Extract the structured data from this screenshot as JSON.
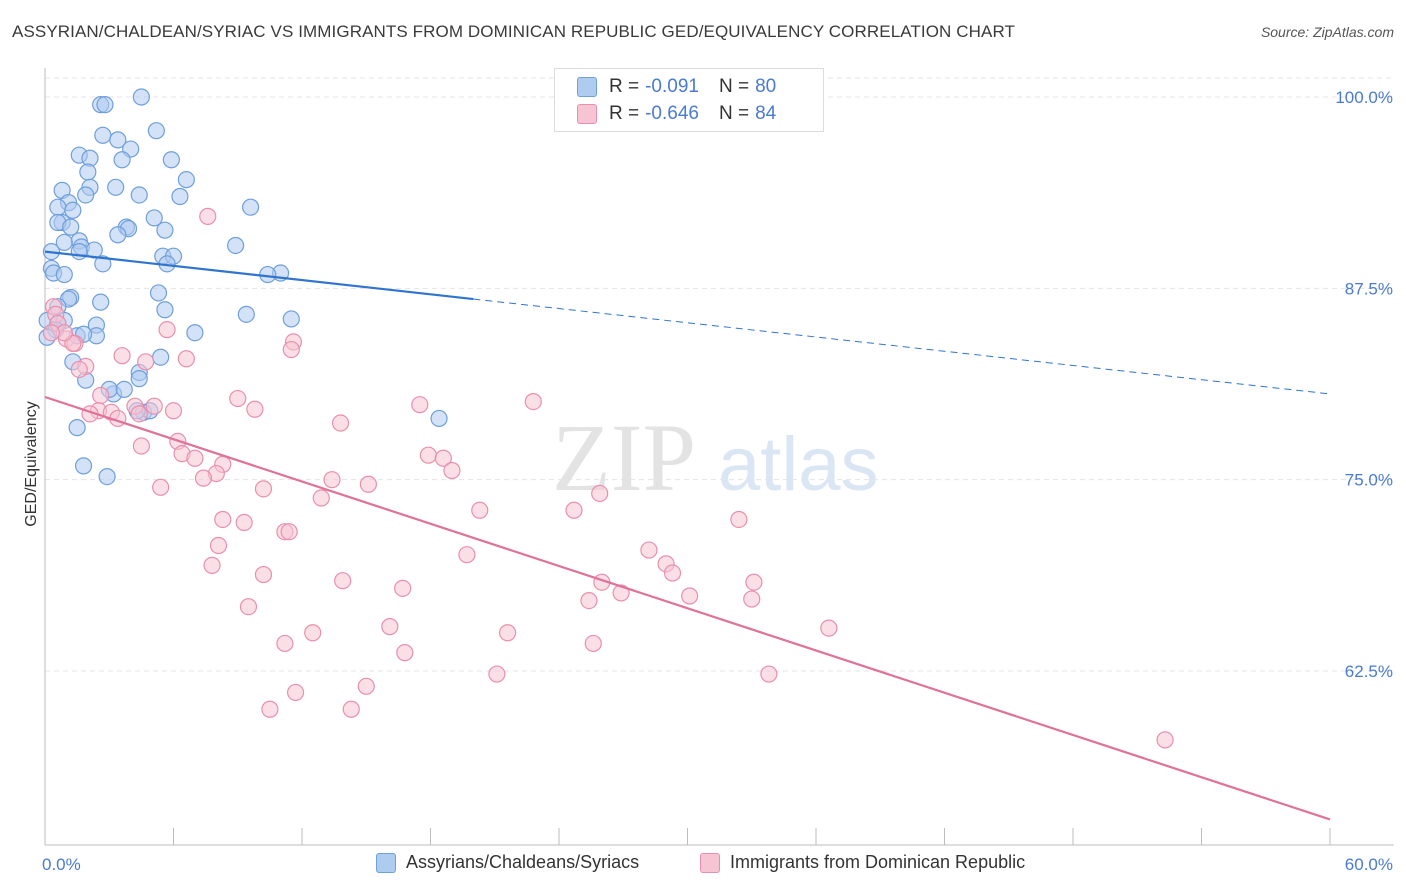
{
  "title": "ASSYRIAN/CHALDEAN/SYRIAC VS IMMIGRANTS FROM DOMINICAN REPUBLIC GED/EQUIVALENCY CORRELATION CHART",
  "source": "Source: ZipAtlas.com",
  "watermark": {
    "zip": "ZIP",
    "atlas": "atlas"
  },
  "legend": {
    "r_label": "R =",
    "n_label": "N =",
    "rows": [
      {
        "r": "-0.091",
        "n": "80"
      },
      {
        "r": "-0.646",
        "n": "84"
      }
    ]
  },
  "colors": {
    "blue_fill": "#aecbf0",
    "blue_stroke": "#6f9fdc",
    "blue_line": "#2f74cf",
    "pink_fill": "#f7c4d4",
    "pink_stroke": "#e98fae",
    "pink_line": "#e0729a",
    "tick_text": "#4a7bd0",
    "grid": "#e4e4e4"
  },
  "chart_data": {
    "type": "scatter",
    "xlabel": "",
    "ylabel": "GED/Equivalency",
    "xlim": [
      0,
      60
    ],
    "ylim": [
      50,
      100
    ],
    "x_ticks_labels": [
      "0.0%",
      "60.0%"
    ],
    "y_ticks": [
      62.5,
      75.0,
      87.5,
      100.0
    ],
    "y_ticks_labels": [
      "62.5%",
      "75.0%",
      "87.5%",
      "100.0%"
    ],
    "grid": true,
    "legend_position": "top-center",
    "series": [
      {
        "name": "Assyrians/Chaldeans/Syriacs",
        "r": -0.091,
        "n": 80,
        "trend": {
          "x0": 0,
          "y0": 89.9,
          "x1": 60,
          "y1": 80.6,
          "solid_until_x": 20
        },
        "points": [
          [
            4.5,
            100.0
          ],
          [
            2.6,
            99.5
          ],
          [
            2.8,
            99.5
          ],
          [
            5.2,
            97.8
          ],
          [
            2.7,
            97.5
          ],
          [
            3.4,
            97.2
          ],
          [
            4.0,
            96.6
          ],
          [
            1.6,
            96.2
          ],
          [
            2.1,
            96.0
          ],
          [
            3.6,
            95.9
          ],
          [
            5.9,
            95.9
          ],
          [
            2.0,
            95.1
          ],
          [
            6.6,
            94.6
          ],
          [
            0.8,
            93.9
          ],
          [
            2.1,
            94.1
          ],
          [
            3.3,
            94.1
          ],
          [
            4.4,
            93.6
          ],
          [
            1.9,
            93.6
          ],
          [
            6.3,
            93.5
          ],
          [
            1.1,
            93.1
          ],
          [
            0.6,
            92.8
          ],
          [
            9.6,
            92.8
          ],
          [
            1.3,
            92.6
          ],
          [
            5.1,
            92.1
          ],
          [
            0.8,
            91.8
          ],
          [
            0.6,
            91.8
          ],
          [
            3.8,
            91.5
          ],
          [
            3.9,
            91.4
          ],
          [
            1.2,
            91.5
          ],
          [
            5.6,
            91.3
          ],
          [
            3.4,
            91.0
          ],
          [
            1.6,
            90.6
          ],
          [
            0.9,
            90.5
          ],
          [
            8.9,
            90.3
          ],
          [
            1.7,
            90.2
          ],
          [
            2.3,
            90.0
          ],
          [
            1.6,
            89.9
          ],
          [
            0.3,
            89.9
          ],
          [
            5.5,
            89.6
          ],
          [
            6.0,
            89.6
          ],
          [
            2.7,
            89.1
          ],
          [
            5.7,
            89.1
          ],
          [
            0.3,
            88.8
          ],
          [
            0.4,
            88.5
          ],
          [
            0.9,
            88.4
          ],
          [
            11.0,
            88.5
          ],
          [
            10.4,
            88.4
          ],
          [
            5.3,
            87.2
          ],
          [
            1.2,
            86.9
          ],
          [
            1.1,
            86.8
          ],
          [
            2.6,
            86.6
          ],
          [
            0.6,
            86.3
          ],
          [
            5.6,
            86.1
          ],
          [
            9.4,
            85.8
          ],
          [
            11.5,
            85.5
          ],
          [
            0.1,
            85.4
          ],
          [
            0.6,
            85.2
          ],
          [
            0.9,
            85.4
          ],
          [
            2.4,
            85.1
          ],
          [
            0.5,
            84.8
          ],
          [
            7.0,
            84.6
          ],
          [
            2.4,
            84.4
          ],
          [
            1.5,
            84.4
          ],
          [
            1.8,
            84.5
          ],
          [
            0.1,
            84.3
          ],
          [
            5.4,
            83.0
          ],
          [
            1.3,
            82.7
          ],
          [
            4.4,
            82.0
          ],
          [
            4.4,
            81.6
          ],
          [
            1.9,
            81.5
          ],
          [
            3.2,
            80.6
          ],
          [
            4.6,
            79.4
          ],
          [
            4.9,
            79.5
          ],
          [
            18.4,
            79.0
          ],
          [
            1.5,
            78.4
          ],
          [
            1.8,
            75.9
          ],
          [
            2.9,
            75.2
          ],
          [
            4.3,
            79.5
          ],
          [
            3.0,
            80.9
          ],
          [
            3.7,
            80.9
          ]
        ]
      },
      {
        "name": "Immigrants from Dominican Republic",
        "r": -0.646,
        "n": 84,
        "trend": {
          "x0": 0,
          "y0": 80.4,
          "x1": 60,
          "y1": 52.8
        },
        "points": [
          [
            7.6,
            92.2
          ],
          [
            0.4,
            86.3
          ],
          [
            0.5,
            85.8
          ],
          [
            11.6,
            84.0
          ],
          [
            11.5,
            83.5
          ],
          [
            0.6,
            85.2
          ],
          [
            1.0,
            84.2
          ],
          [
            1.4,
            83.9
          ],
          [
            5.7,
            84.8
          ],
          [
            3.6,
            83.1
          ],
          [
            6.6,
            82.9
          ],
          [
            4.7,
            82.7
          ],
          [
            1.9,
            82.4
          ],
          [
            1.6,
            82.2
          ],
          [
            1.3,
            83.9
          ],
          [
            0.9,
            84.6
          ],
          [
            9.0,
            80.3
          ],
          [
            22.8,
            80.1
          ],
          [
            17.5,
            79.9
          ],
          [
            2.6,
            80.5
          ],
          [
            4.2,
            79.8
          ],
          [
            5.1,
            79.8
          ],
          [
            9.8,
            79.6
          ],
          [
            6.0,
            79.5
          ],
          [
            2.5,
            79.5
          ],
          [
            2.1,
            79.3
          ],
          [
            3.1,
            79.4
          ],
          [
            4.4,
            79.3
          ],
          [
            3.4,
            79.0
          ],
          [
            13.8,
            78.7
          ],
          [
            6.2,
            77.5
          ],
          [
            4.5,
            77.2
          ],
          [
            17.9,
            76.6
          ],
          [
            6.4,
            76.7
          ],
          [
            18.6,
            76.4
          ],
          [
            7.0,
            76.4
          ],
          [
            8.3,
            76.0
          ],
          [
            19.0,
            75.6
          ],
          [
            8.0,
            75.4
          ],
          [
            7.4,
            75.1
          ],
          [
            13.4,
            75.0
          ],
          [
            15.1,
            74.7
          ],
          [
            5.4,
            74.5
          ],
          [
            10.2,
            74.4
          ],
          [
            25.9,
            74.1
          ],
          [
            12.9,
            73.8
          ],
          [
            20.3,
            73.0
          ],
          [
            24.7,
            73.0
          ],
          [
            11.2,
            71.6
          ],
          [
            32.4,
            72.4
          ],
          [
            8.3,
            72.4
          ],
          [
            9.3,
            72.2
          ],
          [
            11.4,
            71.6
          ],
          [
            8.1,
            70.7
          ],
          [
            28.2,
            70.4
          ],
          [
            19.7,
            70.1
          ],
          [
            7.8,
            69.4
          ],
          [
            29.0,
            69.5
          ],
          [
            10.2,
            68.8
          ],
          [
            29.3,
            68.9
          ],
          [
            13.9,
            68.4
          ],
          [
            26.0,
            68.3
          ],
          [
            33.1,
            68.3
          ],
          [
            16.7,
            67.9
          ],
          [
            26.9,
            67.6
          ],
          [
            30.1,
            67.4
          ],
          [
            25.4,
            67.1
          ],
          [
            33.0,
            67.2
          ],
          [
            9.5,
            66.7
          ],
          [
            16.1,
            65.4
          ],
          [
            36.6,
            65.3
          ],
          [
            12.5,
            65.0
          ],
          [
            21.6,
            65.0
          ],
          [
            11.2,
            64.3
          ],
          [
            25.6,
            64.3
          ],
          [
            16.8,
            63.7
          ],
          [
            33.8,
            62.3
          ],
          [
            21.1,
            62.3
          ],
          [
            15.0,
            61.5
          ],
          [
            11.7,
            61.1
          ],
          [
            10.5,
            60.0
          ],
          [
            14.3,
            60.0
          ],
          [
            52.3,
            58.0
          ],
          [
            0.3,
            84.6
          ]
        ]
      }
    ]
  }
}
